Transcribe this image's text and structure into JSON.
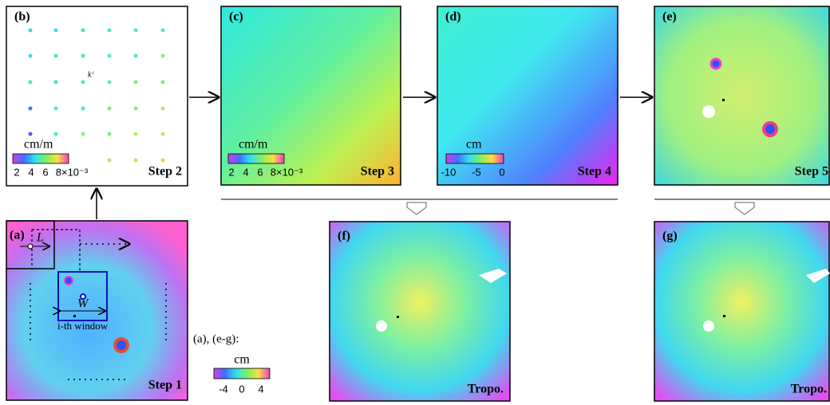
{
  "panels": {
    "a": {
      "label": "(a)",
      "step": "Step 1",
      "L": "L",
      "W": "W",
      "window_label": "i-th window"
    },
    "b": {
      "label": "(b)",
      "step": "Step 2",
      "point_label": "kⁱ",
      "colorbar": {
        "unit": "cm/m",
        "ticks": [
          "2",
          "4",
          "6",
          "8×10⁻³"
        ]
      }
    },
    "c": {
      "label": "(c)",
      "step": "Step 3",
      "colorbar": {
        "unit": "cm/m",
        "ticks": [
          "2",
          "4",
          "6",
          "8×10⁻³"
        ]
      }
    },
    "d": {
      "label": "(d)",
      "step": "Step 4",
      "colorbar": {
        "unit": "cm",
        "ticks": [
          "-10",
          "-5",
          "0"
        ]
      }
    },
    "e": {
      "label": "(e)",
      "step": "Step 5"
    },
    "f": {
      "label": "(f)",
      "step": "Tropo."
    },
    "g": {
      "label": "(g)",
      "step": "Tropo."
    }
  },
  "shared_colorbar": {
    "caption": "(a), (e-g):",
    "unit": "cm",
    "ticks": [
      "-4",
      "0",
      "4"
    ]
  }
}
